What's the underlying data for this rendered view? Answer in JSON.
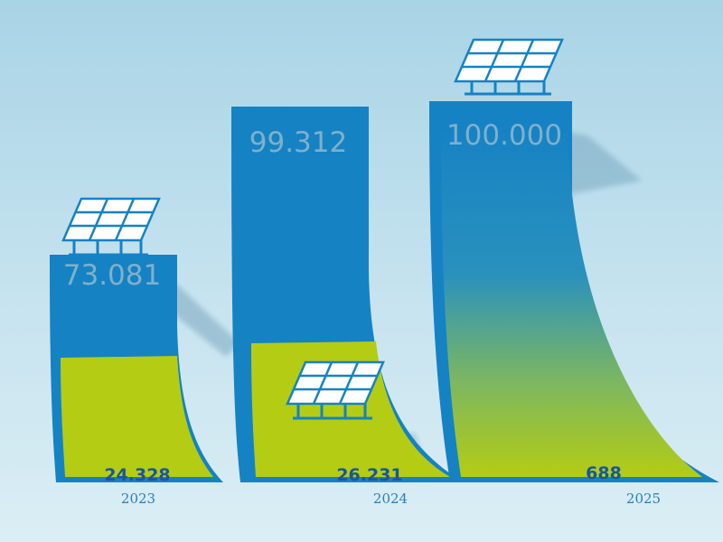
{
  "colors": {
    "background_top": "#a9d4e6",
    "background_bottom": "#dbeef5",
    "bar_blue": "#1582c4",
    "fill_green": "#b4cc14",
    "label_light": "#7fb0cb",
    "label_dark": "#16579a",
    "year_text": "#2a7fb6"
  },
  "chart_data": {
    "type": "bar",
    "categories": [
      "2023",
      "2024",
      "2025"
    ],
    "series": [
      {
        "values": [
          73081,
          99312,
          100000
        ]
      },
      {
        "values": [
          24328,
          26231,
          688
        ]
      }
    ],
    "value_labels": [
      "73.081",
      "99.312",
      "100.000"
    ],
    "fill_labels": [
      "24.328",
      "26.231",
      "688"
    ],
    "icon": "solar-panel-icon",
    "title": "",
    "xlabel": "",
    "ylabel": ""
  }
}
